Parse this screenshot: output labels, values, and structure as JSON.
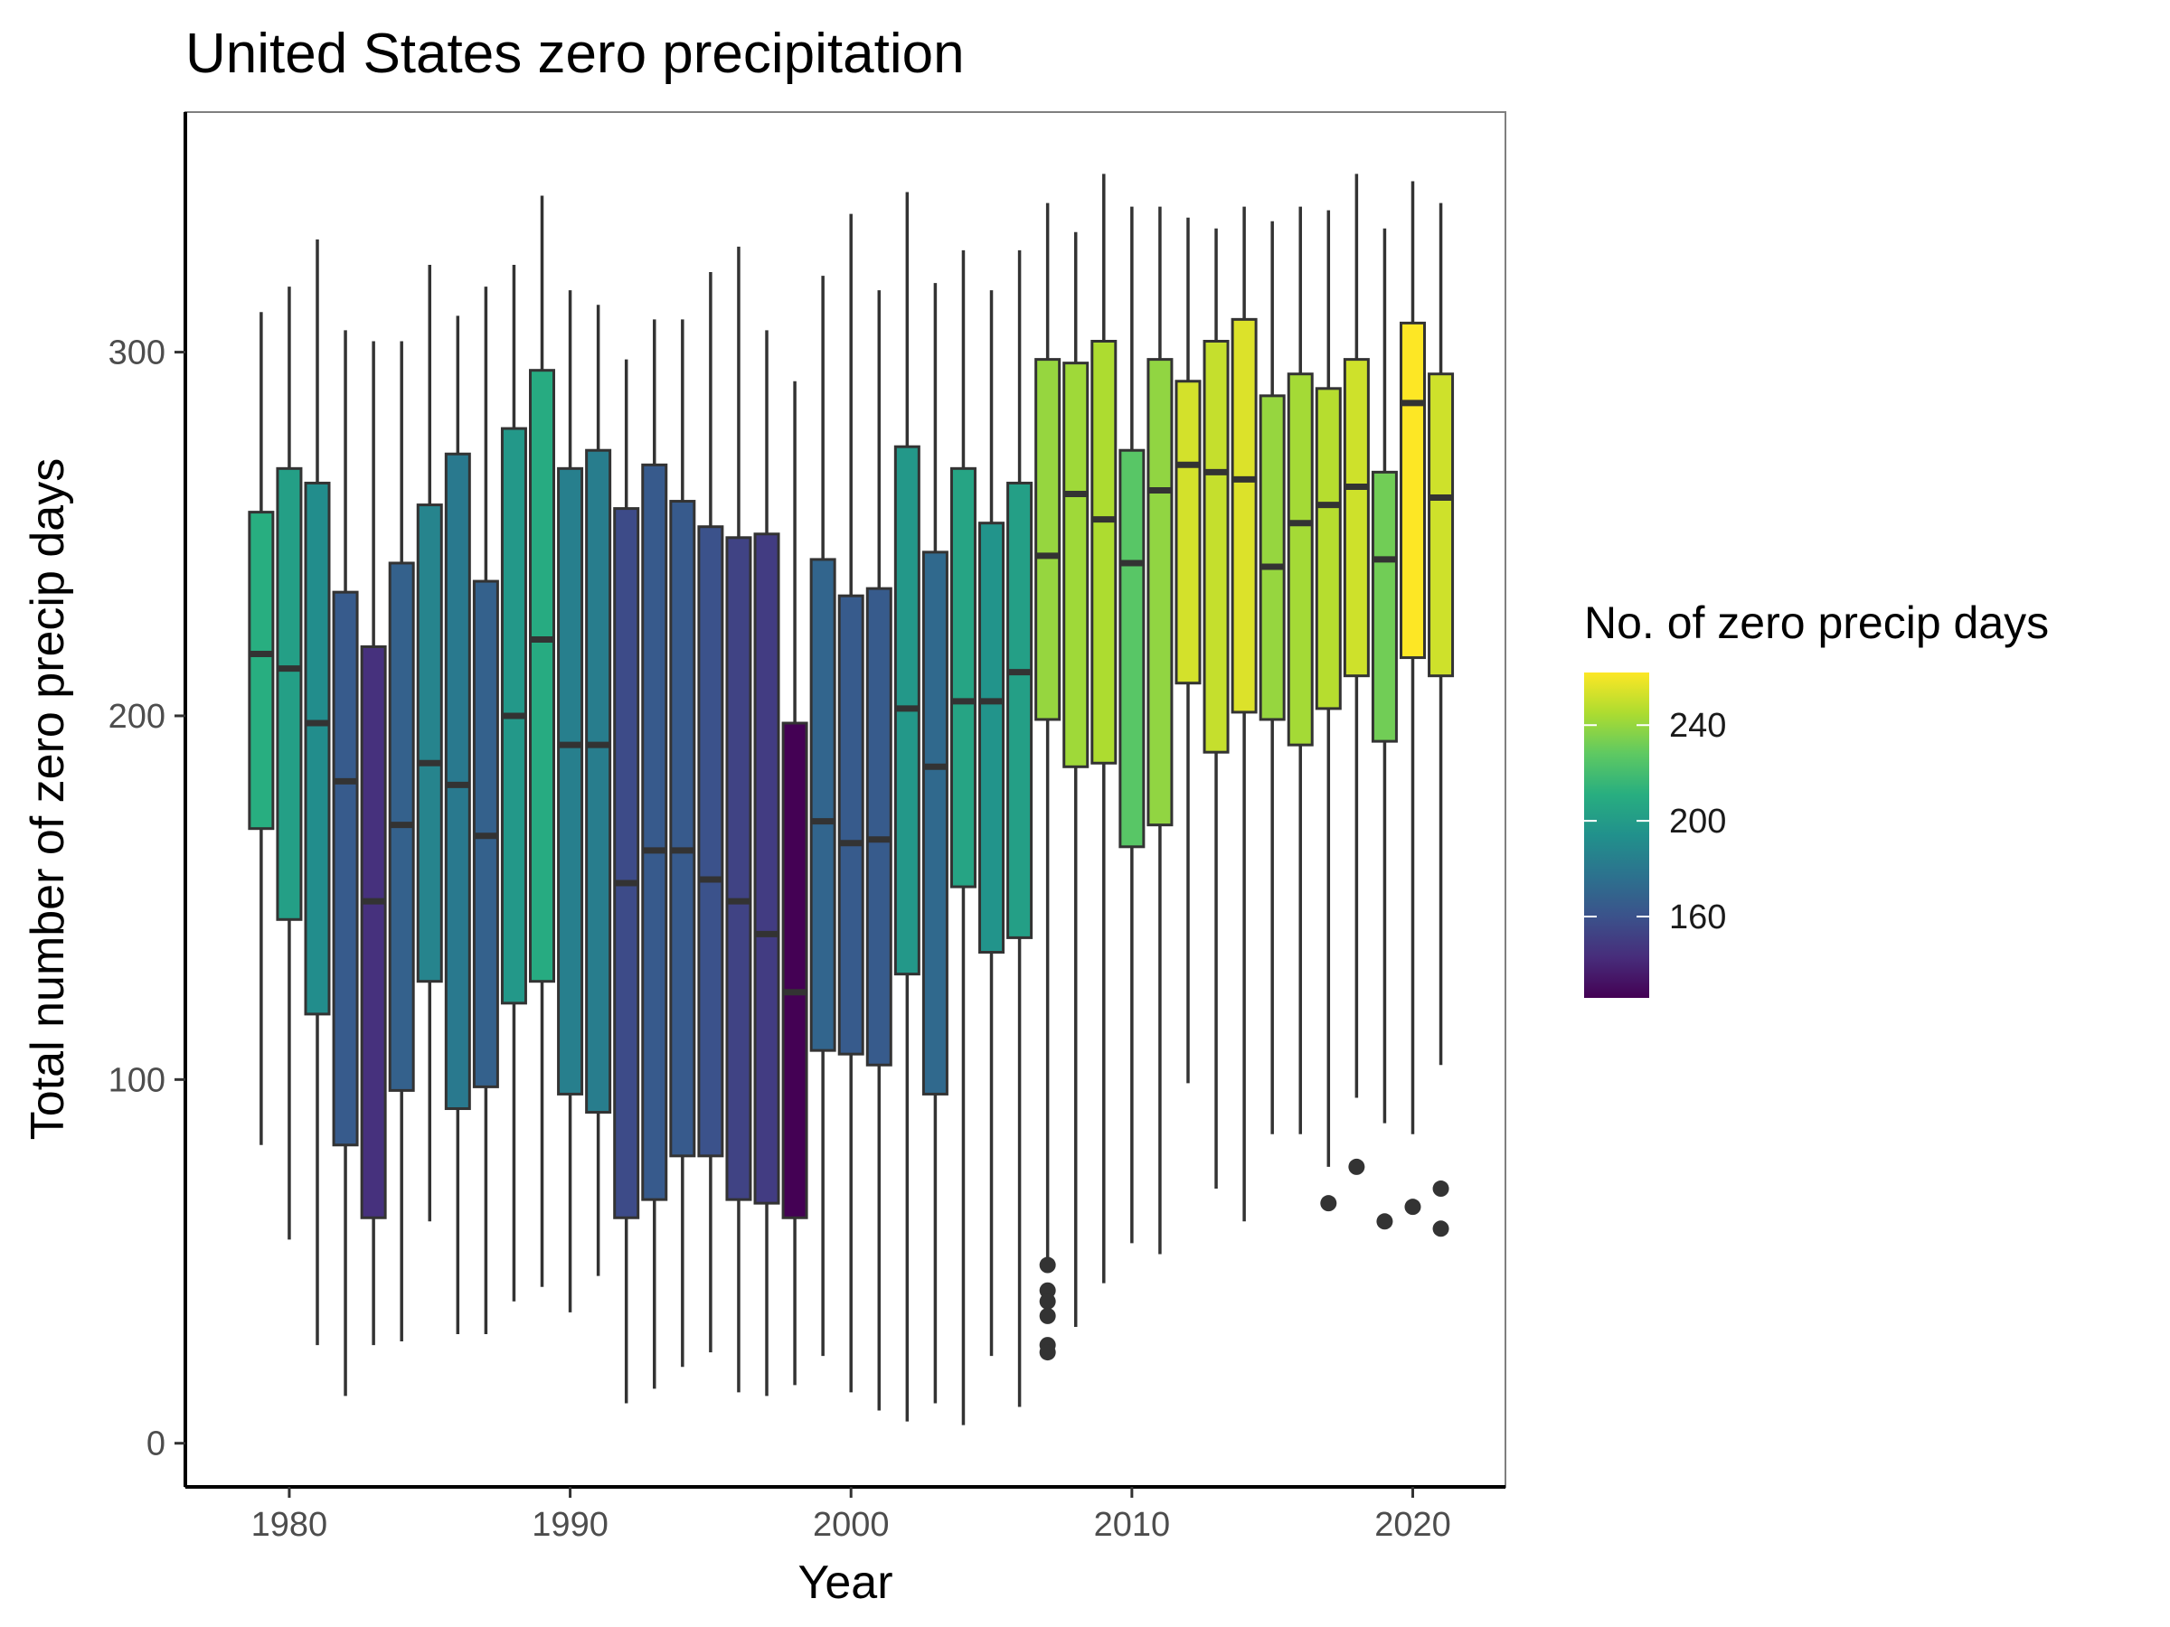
{
  "chart_data": {
    "type": "boxplot",
    "title": "United States zero precipitation",
    "xlabel": "Year",
    "ylabel": "Total number of zero precip days",
    "xlim": [
      1976.3,
      2023.3
    ],
    "ylim": [
      -12,
      366
    ],
    "x_ticks": [
      1980,
      1990,
      2000,
      2010,
      2020
    ],
    "y_ticks": [
      0,
      100,
      200,
      300
    ],
    "grid": false,
    "legend": {
      "title": "No. of zero precip days",
      "placement": "right",
      "type": "colorbar",
      "palette": "viridis",
      "range": [
        126,
        262
      ],
      "ticks": [
        160,
        200,
        240
      ]
    },
    "boxes": [
      {
        "year": 1979,
        "min": 82,
        "q1": 169,
        "median": 217,
        "q3": 256,
        "max": 311,
        "mean": 211,
        "outliers": []
      },
      {
        "year": 1980,
        "min": 56,
        "q1": 144,
        "median": 213,
        "q3": 268,
        "max": 318,
        "mean": 202,
        "outliers": []
      },
      {
        "year": 1981,
        "min": 27,
        "q1": 118,
        "median": 198,
        "q3": 264,
        "max": 331,
        "mean": 192,
        "outliers": []
      },
      {
        "year": 1982,
        "min": 13,
        "q1": 82,
        "median": 182,
        "q3": 234,
        "max": 306,
        "mean": 165,
        "outliers": []
      },
      {
        "year": 1983,
        "min": 27,
        "q1": 62,
        "median": 149,
        "q3": 219,
        "max": 303,
        "mean": 145,
        "outliers": []
      },
      {
        "year": 1984,
        "min": 28,
        "q1": 97,
        "median": 170,
        "q3": 242,
        "max": 303,
        "mean": 168,
        "outliers": []
      },
      {
        "year": 1985,
        "min": 61,
        "q1": 127,
        "median": 187,
        "q3": 258,
        "max": 324,
        "mean": 187,
        "outliers": []
      },
      {
        "year": 1986,
        "min": 30,
        "q1": 92,
        "median": 181,
        "q3": 272,
        "max": 310,
        "mean": 181,
        "outliers": []
      },
      {
        "year": 1987,
        "min": 30,
        "q1": 98,
        "median": 167,
        "q3": 237,
        "max": 318,
        "mean": 168,
        "outliers": []
      },
      {
        "year": 1988,
        "min": 39,
        "q1": 121,
        "median": 200,
        "q3": 279,
        "max": 324,
        "mean": 198,
        "outliers": []
      },
      {
        "year": 1989,
        "min": 43,
        "q1": 127,
        "median": 221,
        "q3": 295,
        "max": 343,
        "mean": 209,
        "outliers": []
      },
      {
        "year": 1990,
        "min": 36,
        "q1": 96,
        "median": 192,
        "q3": 268,
        "max": 317,
        "mean": 184,
        "outliers": []
      },
      {
        "year": 1991,
        "min": 46,
        "q1": 91,
        "median": 192,
        "q3": 273,
        "max": 313,
        "mean": 183,
        "outliers": []
      },
      {
        "year": 1992,
        "min": 11,
        "q1": 62,
        "median": 154,
        "q3": 257,
        "max": 298,
        "mean": 157,
        "outliers": []
      },
      {
        "year": 1993,
        "min": 15,
        "q1": 67,
        "median": 163,
        "q3": 269,
        "max": 309,
        "mean": 164,
        "outliers": []
      },
      {
        "year": 1994,
        "min": 21,
        "q1": 79,
        "median": 163,
        "q3": 259,
        "max": 309,
        "mean": 164,
        "outliers": []
      },
      {
        "year": 1995,
        "min": 25,
        "q1": 79,
        "median": 155,
        "q3": 252,
        "max": 322,
        "mean": 160,
        "outliers": []
      },
      {
        "year": 1996,
        "min": 14,
        "q1": 67,
        "median": 149,
        "q3": 249,
        "max": 329,
        "mean": 153,
        "outliers": []
      },
      {
        "year": 1997,
        "min": 13,
        "q1": 66,
        "median": 140,
        "q3": 250,
        "max": 306,
        "mean": 150,
        "outliers": []
      },
      {
        "year": 1998,
        "min": 16,
        "q1": 62,
        "median": 124,
        "q3": 198,
        "max": 292,
        "mean": 126,
        "outliers": []
      },
      {
        "year": 1999,
        "min": 24,
        "q1": 108,
        "median": 171,
        "q3": 243,
        "max": 321,
        "mean": 170,
        "outliers": []
      },
      {
        "year": 2000,
        "min": 14,
        "q1": 107,
        "median": 165,
        "q3": 233,
        "max": 338,
        "mean": 165,
        "outliers": []
      },
      {
        "year": 2001,
        "min": 9,
        "q1": 104,
        "median": 166,
        "q3": 235,
        "max": 317,
        "mean": 165,
        "outliers": []
      },
      {
        "year": 2002,
        "min": 6,
        "q1": 129,
        "median": 202,
        "q3": 274,
        "max": 344,
        "mean": 198,
        "outliers": []
      },
      {
        "year": 2003,
        "min": 11,
        "q1": 96,
        "median": 186,
        "q3": 245,
        "max": 319,
        "mean": 172,
        "outliers": []
      },
      {
        "year": 2004,
        "min": 5,
        "q1": 153,
        "median": 204,
        "q3": 268,
        "max": 328,
        "mean": 205,
        "outliers": []
      },
      {
        "year": 2005,
        "min": 24,
        "q1": 135,
        "median": 204,
        "q3": 253,
        "max": 317,
        "mean": 196,
        "outliers": []
      },
      {
        "year": 2006,
        "min": 10,
        "q1": 139,
        "median": 212,
        "q3": 264,
        "max": 328,
        "mean": 202,
        "outliers": []
      },
      {
        "year": 2007,
        "min": 51,
        "q1": 199,
        "median": 244,
        "q3": 298,
        "max": 341,
        "mean": 240,
        "outliers": [
          49,
          42,
          39,
          35,
          27,
          25
        ]
      },
      {
        "year": 2008,
        "min": 32,
        "q1": 186,
        "median": 261,
        "q3": 297,
        "max": 333,
        "mean": 242,
        "outliers": []
      },
      {
        "year": 2009,
        "min": 44,
        "q1": 187,
        "median": 254,
        "q3": 303,
        "max": 349,
        "mean": 245,
        "outliers": []
      },
      {
        "year": 2010,
        "min": 55,
        "q1": 164,
        "median": 242,
        "q3": 273,
        "max": 340,
        "mean": 226,
        "outliers": []
      },
      {
        "year": 2011,
        "min": 52,
        "q1": 170,
        "median": 262,
        "q3": 298,
        "max": 340,
        "mean": 239,
        "outliers": []
      },
      {
        "year": 2012,
        "min": 99,
        "q1": 209,
        "median": 269,
        "q3": 292,
        "max": 337,
        "mean": 253,
        "outliers": []
      },
      {
        "year": 2013,
        "min": 70,
        "q1": 190,
        "median": 267,
        "q3": 303,
        "max": 334,
        "mean": 250,
        "outliers": []
      },
      {
        "year": 2014,
        "min": 61,
        "q1": 201,
        "median": 265,
        "q3": 309,
        "max": 340,
        "mean": 255,
        "outliers": []
      },
      {
        "year": 2015,
        "min": 85,
        "q1": 199,
        "median": 241,
        "q3": 288,
        "max": 336,
        "mean": 240,
        "outliers": []
      },
      {
        "year": 2016,
        "min": 85,
        "q1": 192,
        "median": 253,
        "q3": 294,
        "max": 340,
        "mean": 243,
        "outliers": []
      },
      {
        "year": 2017,
        "min": 76,
        "q1": 202,
        "median": 258,
        "q3": 290,
        "max": 339,
        "mean": 247,
        "outliers": [
          66
        ]
      },
      {
        "year": 2018,
        "min": 95,
        "q1": 211,
        "median": 263,
        "q3": 298,
        "max": 349,
        "mean": 252,
        "outliers": [
          76
        ]
      },
      {
        "year": 2019,
        "min": 88,
        "q1": 193,
        "median": 243,
        "q3": 267,
        "max": 334,
        "mean": 232,
        "outliers": [
          61
        ]
      },
      {
        "year": 2020,
        "min": 85,
        "q1": 216,
        "median": 286,
        "q3": 308,
        "max": 347,
        "mean": 262,
        "outliers": [
          65
        ]
      },
      {
        "year": 2021,
        "min": 104,
        "q1": 211,
        "median": 260,
        "q3": 294,
        "max": 341,
        "mean": 252,
        "outliers": [
          70,
          59
        ]
      }
    ]
  }
}
